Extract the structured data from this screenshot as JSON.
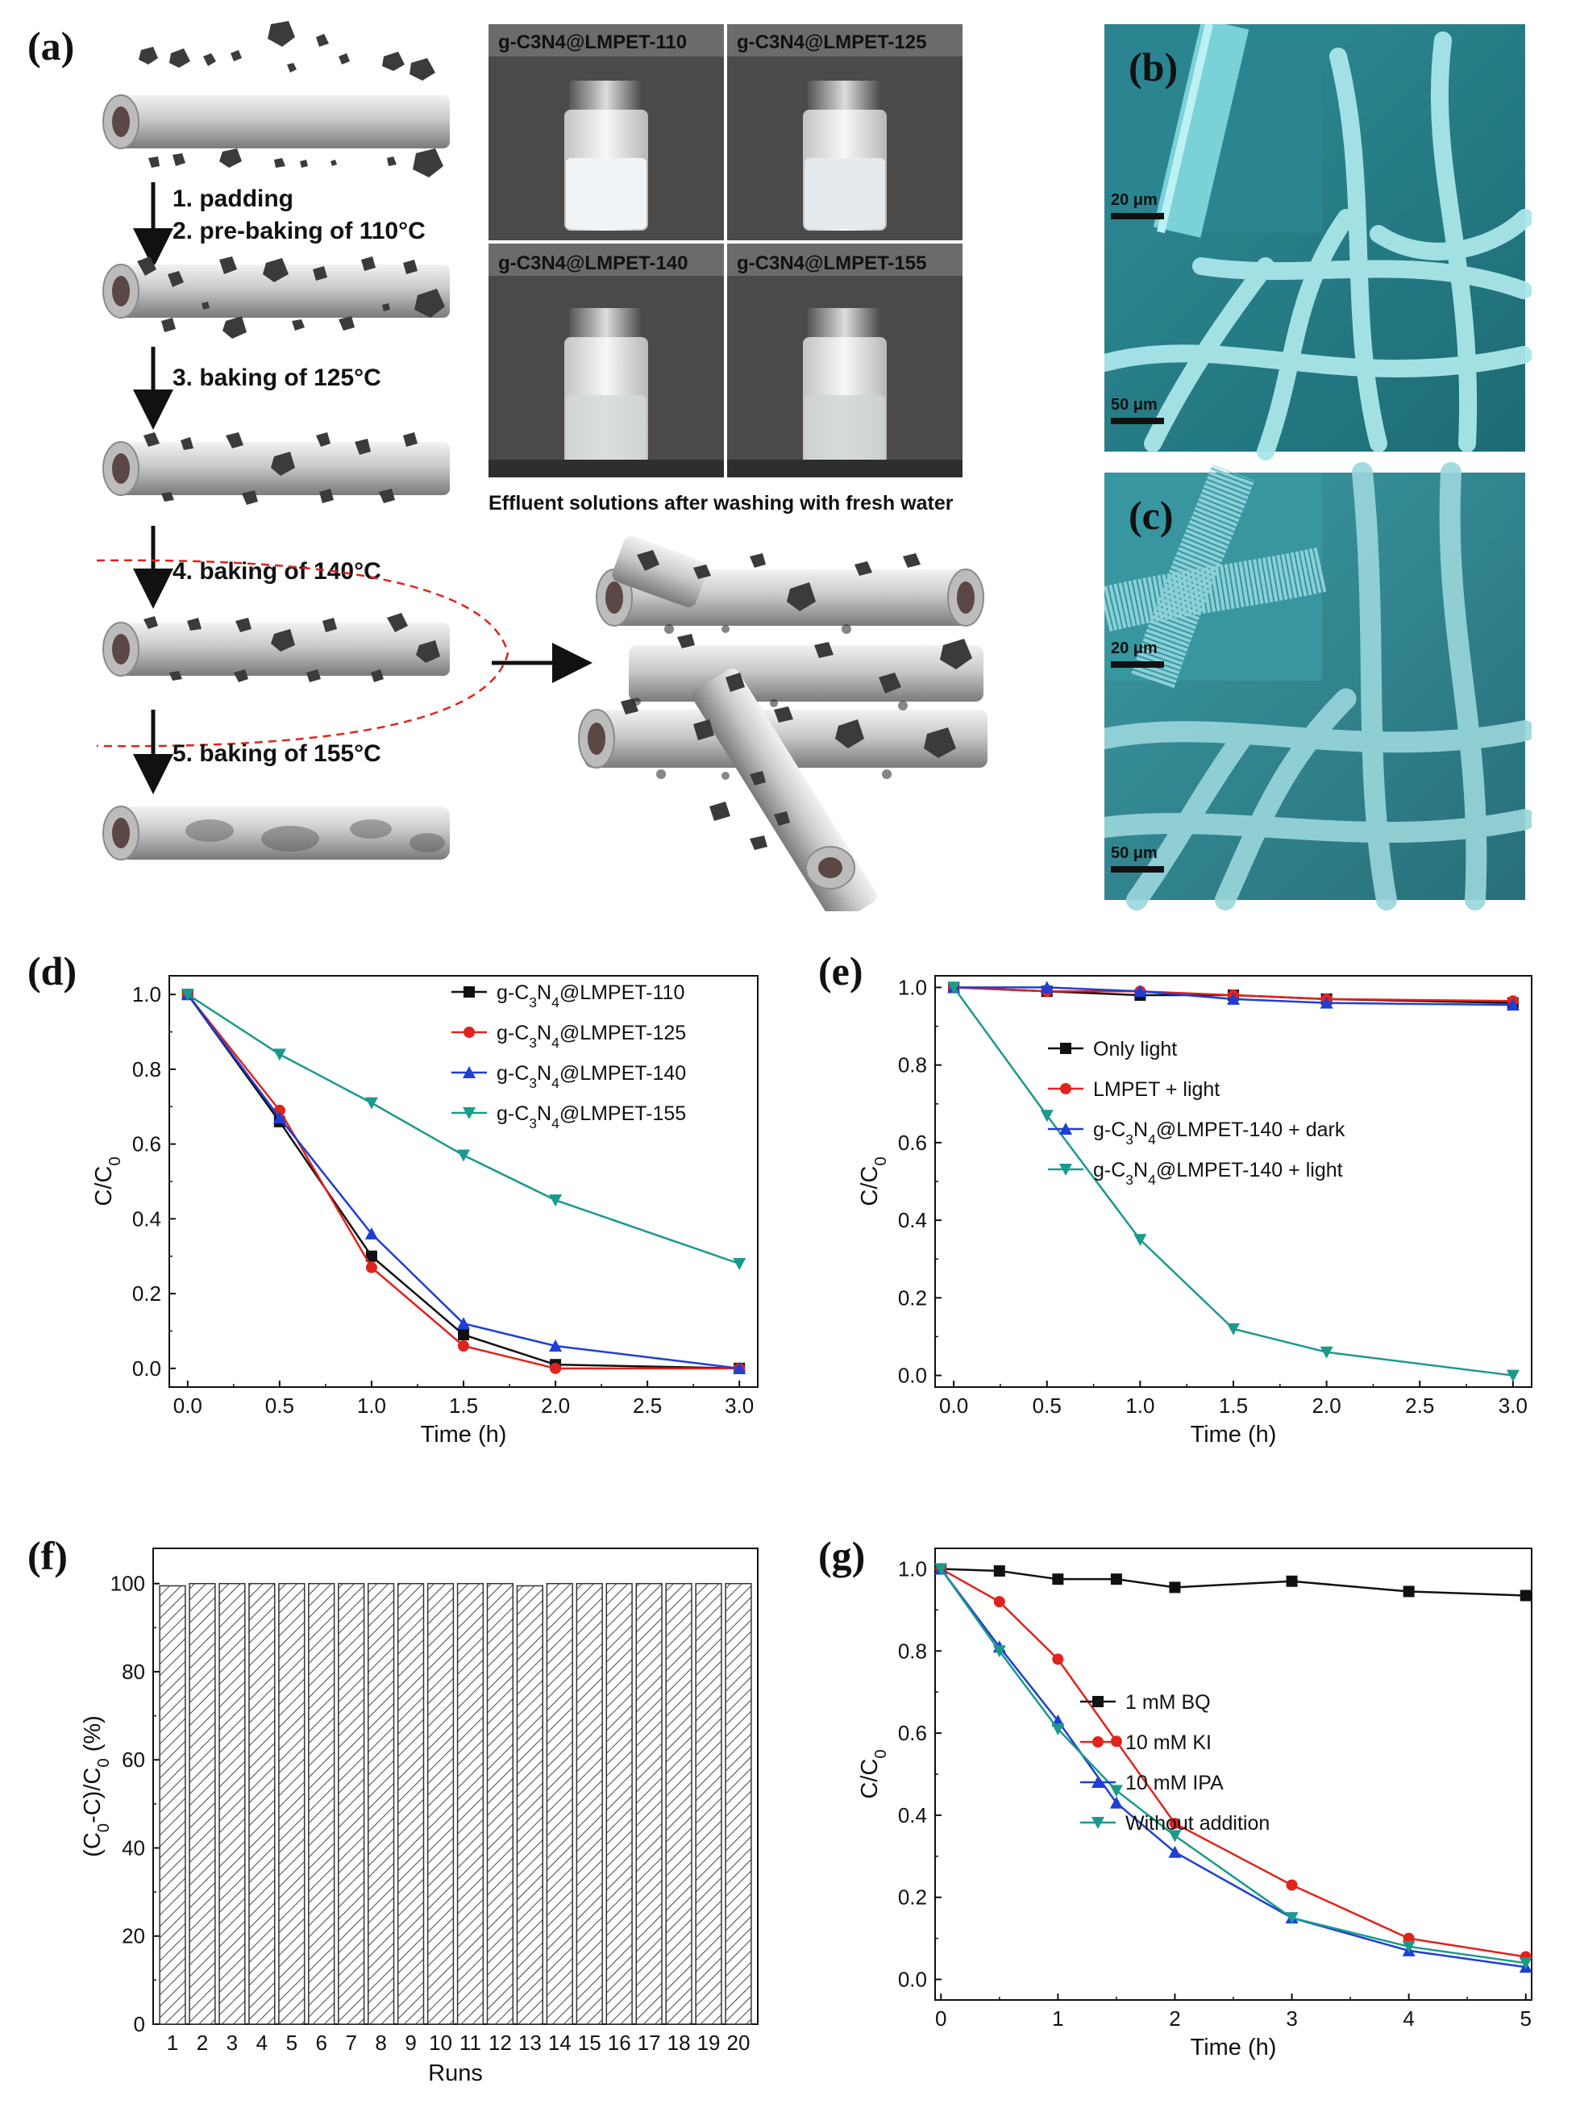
{
  "panel_labels": {
    "a": "(a)",
    "b": "(b)",
    "c": "(c)",
    "d": "(d)",
    "e": "(e)",
    "f": "(f)",
    "g": "(g)"
  },
  "scheme": {
    "steps": [
      "1. padding",
      "2. pre-baking of 110°C",
      "3. baking of 125°C",
      "4. baking of 140°C",
      "5. baking of 155°C"
    ],
    "photos": [
      "g-C3N4@LMPET-110",
      "g-C3N4@LMPET-125",
      "g-C3N4@LMPET-140",
      "g-C3N4@LMPET-155"
    ],
    "caption": "Effluent solutions after washing with fresh water"
  },
  "sem": {
    "b": {
      "inset_scale": "20 μm",
      "main_scale": "50 μm"
    },
    "c": {
      "inset_scale": "20 μm",
      "main_scale": "50 μm"
    }
  },
  "colors": {
    "black": "#111111",
    "red": "#e0231c",
    "blue": "#1f3ed6",
    "teal": "#1a9a8c",
    "sem_cyan": "#4fc2cc"
  },
  "chart_data": [
    {
      "id": "d",
      "type": "line",
      "xlabel": "Time (h)",
      "ylabel": "C/C0",
      "xlim": [
        -0.1,
        3.1
      ],
      "ylim": [
        -0.05,
        1.05
      ],
      "xticks": [
        "0.0",
        "0.5",
        "1.0",
        "1.5",
        "2.0",
        "2.5",
        "3.0"
      ],
      "yticks": [
        "0.0",
        "0.2",
        "0.4",
        "0.6",
        "0.8",
        "1.0"
      ],
      "legend_position": "top-right",
      "series": [
        {
          "name": "g-C3N4@LMPET-110",
          "marker": "square",
          "color": "#111111",
          "x": [
            0,
            0.5,
            1,
            1.5,
            2,
            3
          ],
          "y": [
            1.0,
            0.66,
            0.3,
            0.09,
            0.01,
            0.0
          ]
        },
        {
          "name": "g-C3N4@LMPET-125",
          "marker": "circle",
          "color": "#e0231c",
          "x": [
            0,
            0.5,
            1,
            1.5,
            2,
            3
          ],
          "y": [
            1.0,
            0.69,
            0.27,
            0.06,
            0.0,
            0.0
          ]
        },
        {
          "name": "g-C3N4@LMPET-140",
          "marker": "triangle-up",
          "color": "#1f3ed6",
          "x": [
            0,
            0.5,
            1,
            1.5,
            2,
            3
          ],
          "y": [
            1.0,
            0.67,
            0.36,
            0.12,
            0.06,
            0.0
          ]
        },
        {
          "name": "g-C3N4@LMPET-155",
          "marker": "triangle-down",
          "color": "#1a9a8c",
          "x": [
            0,
            0.5,
            1,
            1.5,
            2,
            3
          ],
          "y": [
            1.0,
            0.84,
            0.71,
            0.57,
            0.45,
            0.28
          ]
        }
      ]
    },
    {
      "id": "e",
      "type": "line",
      "xlabel": "Time (h)",
      "ylabel": "C/C0",
      "xlim": [
        -0.1,
        3.1
      ],
      "ylim": [
        -0.03,
        1.03
      ],
      "xticks": [
        "0.0",
        "0.5",
        "1.0",
        "1.5",
        "2.0",
        "2.5",
        "3.0"
      ],
      "yticks": [
        "0.0",
        "0.2",
        "0.4",
        "0.6",
        "0.8",
        "1.0"
      ],
      "legend_position": "center-right",
      "series": [
        {
          "name": "Only light",
          "marker": "square",
          "color": "#111111",
          "x": [
            0,
            0.5,
            1,
            1.5,
            2,
            3
          ],
          "y": [
            1.0,
            0.99,
            0.98,
            0.98,
            0.97,
            0.96
          ]
        },
        {
          "name": "LMPET + light",
          "marker": "circle",
          "color": "#e0231c",
          "x": [
            0,
            0.5,
            1,
            1.5,
            2,
            3
          ],
          "y": [
            1.0,
            0.99,
            0.99,
            0.98,
            0.97,
            0.965
          ]
        },
        {
          "name": "g-C3N4@LMPET-140 + dark",
          "marker": "triangle-up",
          "color": "#1f3ed6",
          "x": [
            0,
            0.5,
            1,
            1.5,
            2,
            3
          ],
          "y": [
            1.0,
            1.0,
            0.99,
            0.97,
            0.96,
            0.955
          ]
        },
        {
          "name": "g-C3N4@LMPET-140 + light",
          "marker": "triangle-down",
          "color": "#1a9a8c",
          "x": [
            0,
            0.5,
            1,
            1.5,
            2,
            3
          ],
          "y": [
            1.0,
            0.67,
            0.35,
            0.12,
            0.06,
            0.0
          ]
        }
      ]
    },
    {
      "id": "f",
      "type": "bar",
      "xlabel": "Runs",
      "ylabel": "(C0-C)/C0 (%)",
      "ylim": [
        0,
        108
      ],
      "yticks": [
        "0",
        "20",
        "40",
        "60",
        "80",
        "100"
      ],
      "categories": [
        "1",
        "2",
        "3",
        "4",
        "5",
        "6",
        "7",
        "8",
        "9",
        "10",
        "11",
        "12",
        "13",
        "14",
        "15",
        "16",
        "17",
        "18",
        "19",
        "20"
      ],
      "values": [
        99.5,
        100,
        100,
        100,
        100,
        100,
        100,
        100,
        100,
        100,
        100,
        100,
        99.5,
        100,
        100,
        100,
        100,
        100,
        100,
        100
      ]
    },
    {
      "id": "g",
      "type": "line",
      "xlabel": "Time (h)",
      "ylabel": "C/C0",
      "xlim": [
        -0.05,
        5.05
      ],
      "ylim": [
        -0.05,
        1.05
      ],
      "xticks": [
        "0",
        "1",
        "2",
        "3",
        "4",
        "5"
      ],
      "yticks": [
        "0.0",
        "0.2",
        "0.4",
        "0.6",
        "0.8",
        "1.0"
      ],
      "legend_position": "center-right",
      "series": [
        {
          "name": "1 mM BQ",
          "marker": "square",
          "color": "#111111",
          "x": [
            0,
            0.5,
            1,
            1.5,
            2,
            3,
            4,
            5
          ],
          "y": [
            1.0,
            0.995,
            0.975,
            0.975,
            0.955,
            0.97,
            0.945,
            0.935
          ]
        },
        {
          "name": "10 mM KI",
          "marker": "circle",
          "color": "#e0231c",
          "x": [
            0,
            0.5,
            1,
            1.5,
            2,
            3,
            4,
            5
          ],
          "y": [
            1.0,
            0.92,
            0.78,
            0.58,
            0.38,
            0.23,
            0.1,
            0.055
          ]
        },
        {
          "name": "10 mM IPA",
          "marker": "triangle-up",
          "color": "#1f3ed6",
          "x": [
            0,
            0.5,
            1,
            1.5,
            2,
            3,
            4,
            5
          ],
          "y": [
            1.0,
            0.81,
            0.63,
            0.43,
            0.31,
            0.15,
            0.07,
            0.03
          ]
        },
        {
          "name": "Without addition",
          "marker": "triangle-down",
          "color": "#1a9a8c",
          "x": [
            0,
            0.5,
            1,
            1.5,
            2,
            3,
            4,
            5
          ],
          "y": [
            1.0,
            0.8,
            0.61,
            0.46,
            0.35,
            0.15,
            0.08,
            0.04
          ]
        }
      ]
    }
  ]
}
